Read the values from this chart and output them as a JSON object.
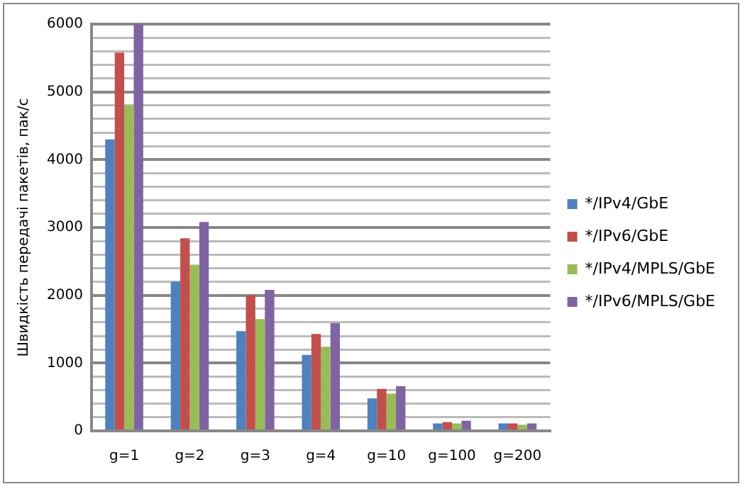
{
  "chart_data": {
    "type": "bar",
    "ylabel": "Швидкість передачі пакетів, пак/с",
    "categories": [
      "g=1",
      "g=2",
      "g=3",
      "g=4",
      "g=10",
      "g=100",
      "g=200"
    ],
    "series": [
      {
        "name": "*/IPv4/GbE",
        "color": "#4f81bd",
        "values": [
          4300,
          2200,
          1470,
          1120,
          480,
          110,
          110
        ]
      },
      {
        "name": "*/IPv6/GbE",
        "color": "#c0504d",
        "values": [
          5580,
          2840,
          2000,
          1430,
          620,
          130,
          110
        ]
      },
      {
        "name": "*/IPv4/MPLS/GbE",
        "color": "#9bbb59",
        "values": [
          4800,
          2450,
          1650,
          1240,
          550,
          110,
          90
        ]
      },
      {
        "name": "*/IPv6/MPLS/GbE",
        "color": "#8064a2",
        "values": [
          6000,
          3080,
          2080,
          1590,
          660,
          150,
          110
        ]
      }
    ],
    "ylim": [
      0,
      6000
    ],
    "yticks": [
      0,
      {
        "value": 200,
        "label": null
      },
      {
        "value": 400,
        "label": null
      },
      {
        "value": 600,
        "label": null
      },
      {
        "value": 800,
        "label": null
      },
      1000,
      {
        "value": 1200,
        "label": null
      },
      {
        "value": 1400,
        "label": null
      },
      {
        "value": 1600,
        "label": null
      },
      {
        "value": 1800,
        "label": null
      },
      2000,
      {
        "value": 2200,
        "label": null
      },
      {
        "value": 2400,
        "label": null
      },
      {
        "value": 2600,
        "label": null
      },
      {
        "value": 2800,
        "label": null
      },
      3000,
      {
        "value": 3200,
        "label": null
      },
      {
        "value": 3400,
        "label": null
      },
      {
        "value": 3600,
        "label": null
      },
      {
        "value": 3800,
        "label": null
      },
      4000,
      {
        "value": 4200,
        "label": null
      },
      {
        "value": 4400,
        "label": null
      },
      {
        "value": 4600,
        "label": null
      },
      {
        "value": 4800,
        "label": null
      },
      5000,
      {
        "value": 5200,
        "label": null
      },
      {
        "value": 5400,
        "label": null
      },
      {
        "value": 5600,
        "label": null
      },
      {
        "value": 5800,
        "label": null
      },
      6000
    ],
    "grid": "y",
    "legend": "right"
  }
}
